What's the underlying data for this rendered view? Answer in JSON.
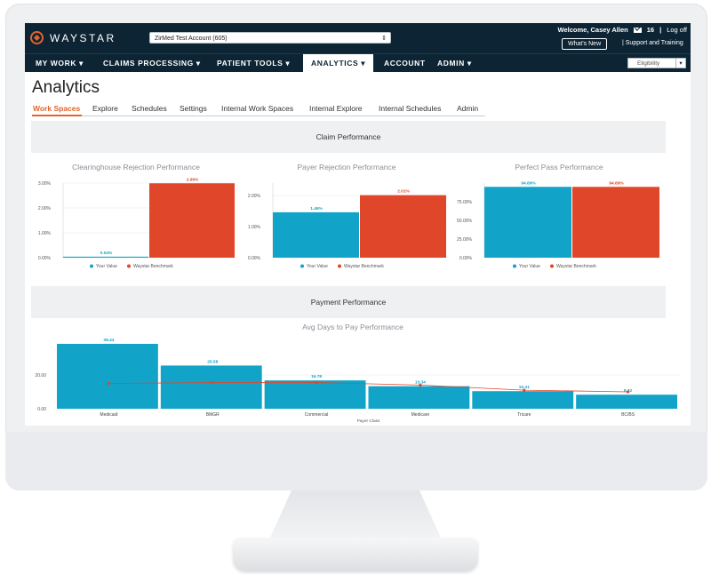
{
  "header": {
    "logo_text": "WAYSTAR",
    "account_selector": "ZirMed Test Account (605)",
    "welcome": "Welcome, Casey Allen",
    "message_count": "16",
    "logoff": "Log off",
    "whats_new": "What's New",
    "support": "Support and Training"
  },
  "nav": {
    "items": [
      {
        "label": "MY WORK",
        "dropdown": true
      },
      {
        "label": "CLAIMS PROCESSING",
        "dropdown": true
      },
      {
        "label": "PATIENT TOOLS",
        "dropdown": true
      },
      {
        "label": "ANALYTICS",
        "dropdown": true,
        "active": true
      },
      {
        "label": "ACCOUNT",
        "dropdown": false
      },
      {
        "label": "ADMIN",
        "dropdown": true
      }
    ],
    "eligibility": "Eligibility"
  },
  "page": {
    "title": "Analytics",
    "tabs": [
      "Work Spaces",
      "Explore",
      "Schedules",
      "Settings",
      "Internal Work Spaces",
      "Internal Explore",
      "Internal Schedules",
      "Admin"
    ],
    "active_tab": "Work Spaces"
  },
  "sections": {
    "claim_performance": "Claim Performance",
    "payment_performance": "Payment Performance"
  },
  "colors": {
    "your_value": "#12a3c8",
    "benchmark": "#e0472a",
    "nav_bg": "#0d2434",
    "accent": "#e2642f"
  },
  "chart_data": [
    {
      "type": "bar",
      "title": "Clearinghouse Rejection Performance",
      "categories": [
        "Your Value",
        "Waystar Benchmark"
      ],
      "values": [
        0.04,
        2.99
      ],
      "value_labels": [
        "0.04%",
        "2.99%"
      ],
      "yticks": [
        "3.00%",
        "2.00%",
        "1.00%",
        "0.00%"
      ],
      "ylim": [
        0,
        3
      ],
      "legend": [
        "Your Value",
        "Waystar Benchmark"
      ]
    },
    {
      "type": "bar",
      "title": "Payer Rejection Performance",
      "categories": [
        "Your Value",
        "Waystar Benchmark"
      ],
      "values": [
        1.46,
        2.01
      ],
      "value_labels": [
        "1.46%",
        "2.01%"
      ],
      "yticks": [
        "2.00%",
        "1.00%",
        "0.00%"
      ],
      "ylim": [
        0,
        2.4
      ],
      "legend": [
        "Your Value",
        "Waystar Benchmark"
      ]
    },
    {
      "type": "bar",
      "title": "Perfect Pass Performance",
      "categories": [
        "Your Value",
        "Waystar Benchmark"
      ],
      "values": [
        94.89,
        94.89
      ],
      "value_labels": [
        "94.89%",
        "94.89%"
      ],
      "yticks": [
        "75.00%",
        "50.00%",
        "25.00%",
        "0.00%"
      ],
      "ylim": [
        0,
        100
      ],
      "legend": [
        "Your Value",
        "Waystar Benchmark"
      ]
    },
    {
      "type": "bar",
      "title": "Avg Days to Pay Performance",
      "categories": [
        "Medicaid",
        "BMGR",
        "Commercial",
        "Medicare",
        "Tricare",
        "BC/BS"
      ],
      "values": [
        38.44,
        25.58,
        16.78,
        13.34,
        10.41,
        8.32
      ],
      "value_labels": [
        "38.44",
        "25.58",
        "16.78",
        "13.34",
        "10.41",
        "8.32"
      ],
      "benchmark_line": [
        15,
        15.5,
        15.5,
        14,
        11,
        10
      ],
      "yticks": [
        "20.00",
        "0.00"
      ],
      "ylim": [
        0,
        40
      ],
      "xlabel": "Payer Class"
    }
  ]
}
